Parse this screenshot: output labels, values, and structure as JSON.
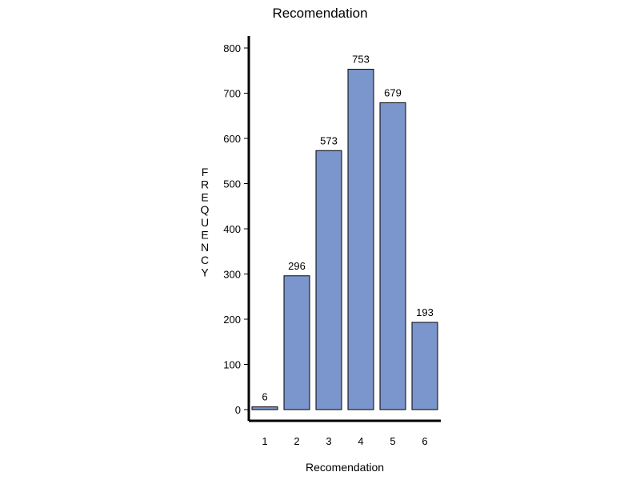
{
  "chart_data": {
    "type": "bar",
    "title": "Recomendation",
    "xlabel": "Recomendation",
    "ylabel": "FREQUENCY",
    "categories": [
      "1",
      "2",
      "3",
      "4",
      "5",
      "6"
    ],
    "values": [
      6,
      296,
      573,
      753,
      679,
      193
    ],
    "data_labels": [
      "6",
      "296",
      "573",
      "753",
      "679",
      "193"
    ],
    "y_ticks": [
      "0",
      "100",
      "200",
      "300",
      "400",
      "500",
      "600",
      "700",
      "800"
    ],
    "ylim": [
      0,
      820
    ],
    "grid": false,
    "legend": "none",
    "bar_color": "#7b96cc",
    "bar_edge_color": "#000000"
  }
}
